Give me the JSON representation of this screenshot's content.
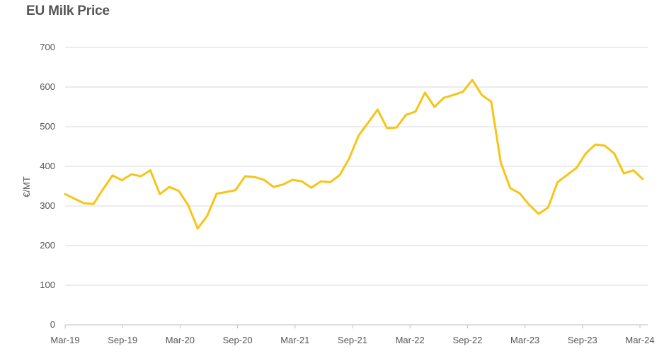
{
  "chart_data": {
    "type": "line",
    "title": "EU Milk Price",
    "ylabel": "€/MT",
    "xlabel": "",
    "ylim": [
      0,
      700
    ],
    "yticks": [
      0,
      100,
      200,
      300,
      400,
      500,
      600,
      700
    ],
    "xtick_labels": [
      "Mar-19",
      "Sep-19",
      "Mar-20",
      "Sep-20",
      "Mar-21",
      "Sep-21",
      "Mar-22",
      "Sep-22",
      "Mar-23",
      "Sep-23",
      "Mar-24"
    ],
    "grid": true,
    "line_color": "#f5c518",
    "series": [
      {
        "values": [
          330,
          318,
          307,
          305,
          342,
          377,
          365,
          380,
          375,
          390,
          330,
          348,
          338,
          302,
          243,
          275,
          331,
          335,
          340,
          375,
          373,
          366,
          348,
          354,
          366,
          362,
          346,
          362,
          360,
          378,
          420,
          478,
          510,
          543,
          496,
          498,
          530,
          538,
          586,
          550,
          573,
          580,
          588,
          618,
          580,
          563,
          410,
          345,
          332,
          303,
          280,
          296,
          360,
          378,
          396,
          433,
          455,
          452,
          432,
          382,
          390,
          368
        ]
      }
    ]
  }
}
